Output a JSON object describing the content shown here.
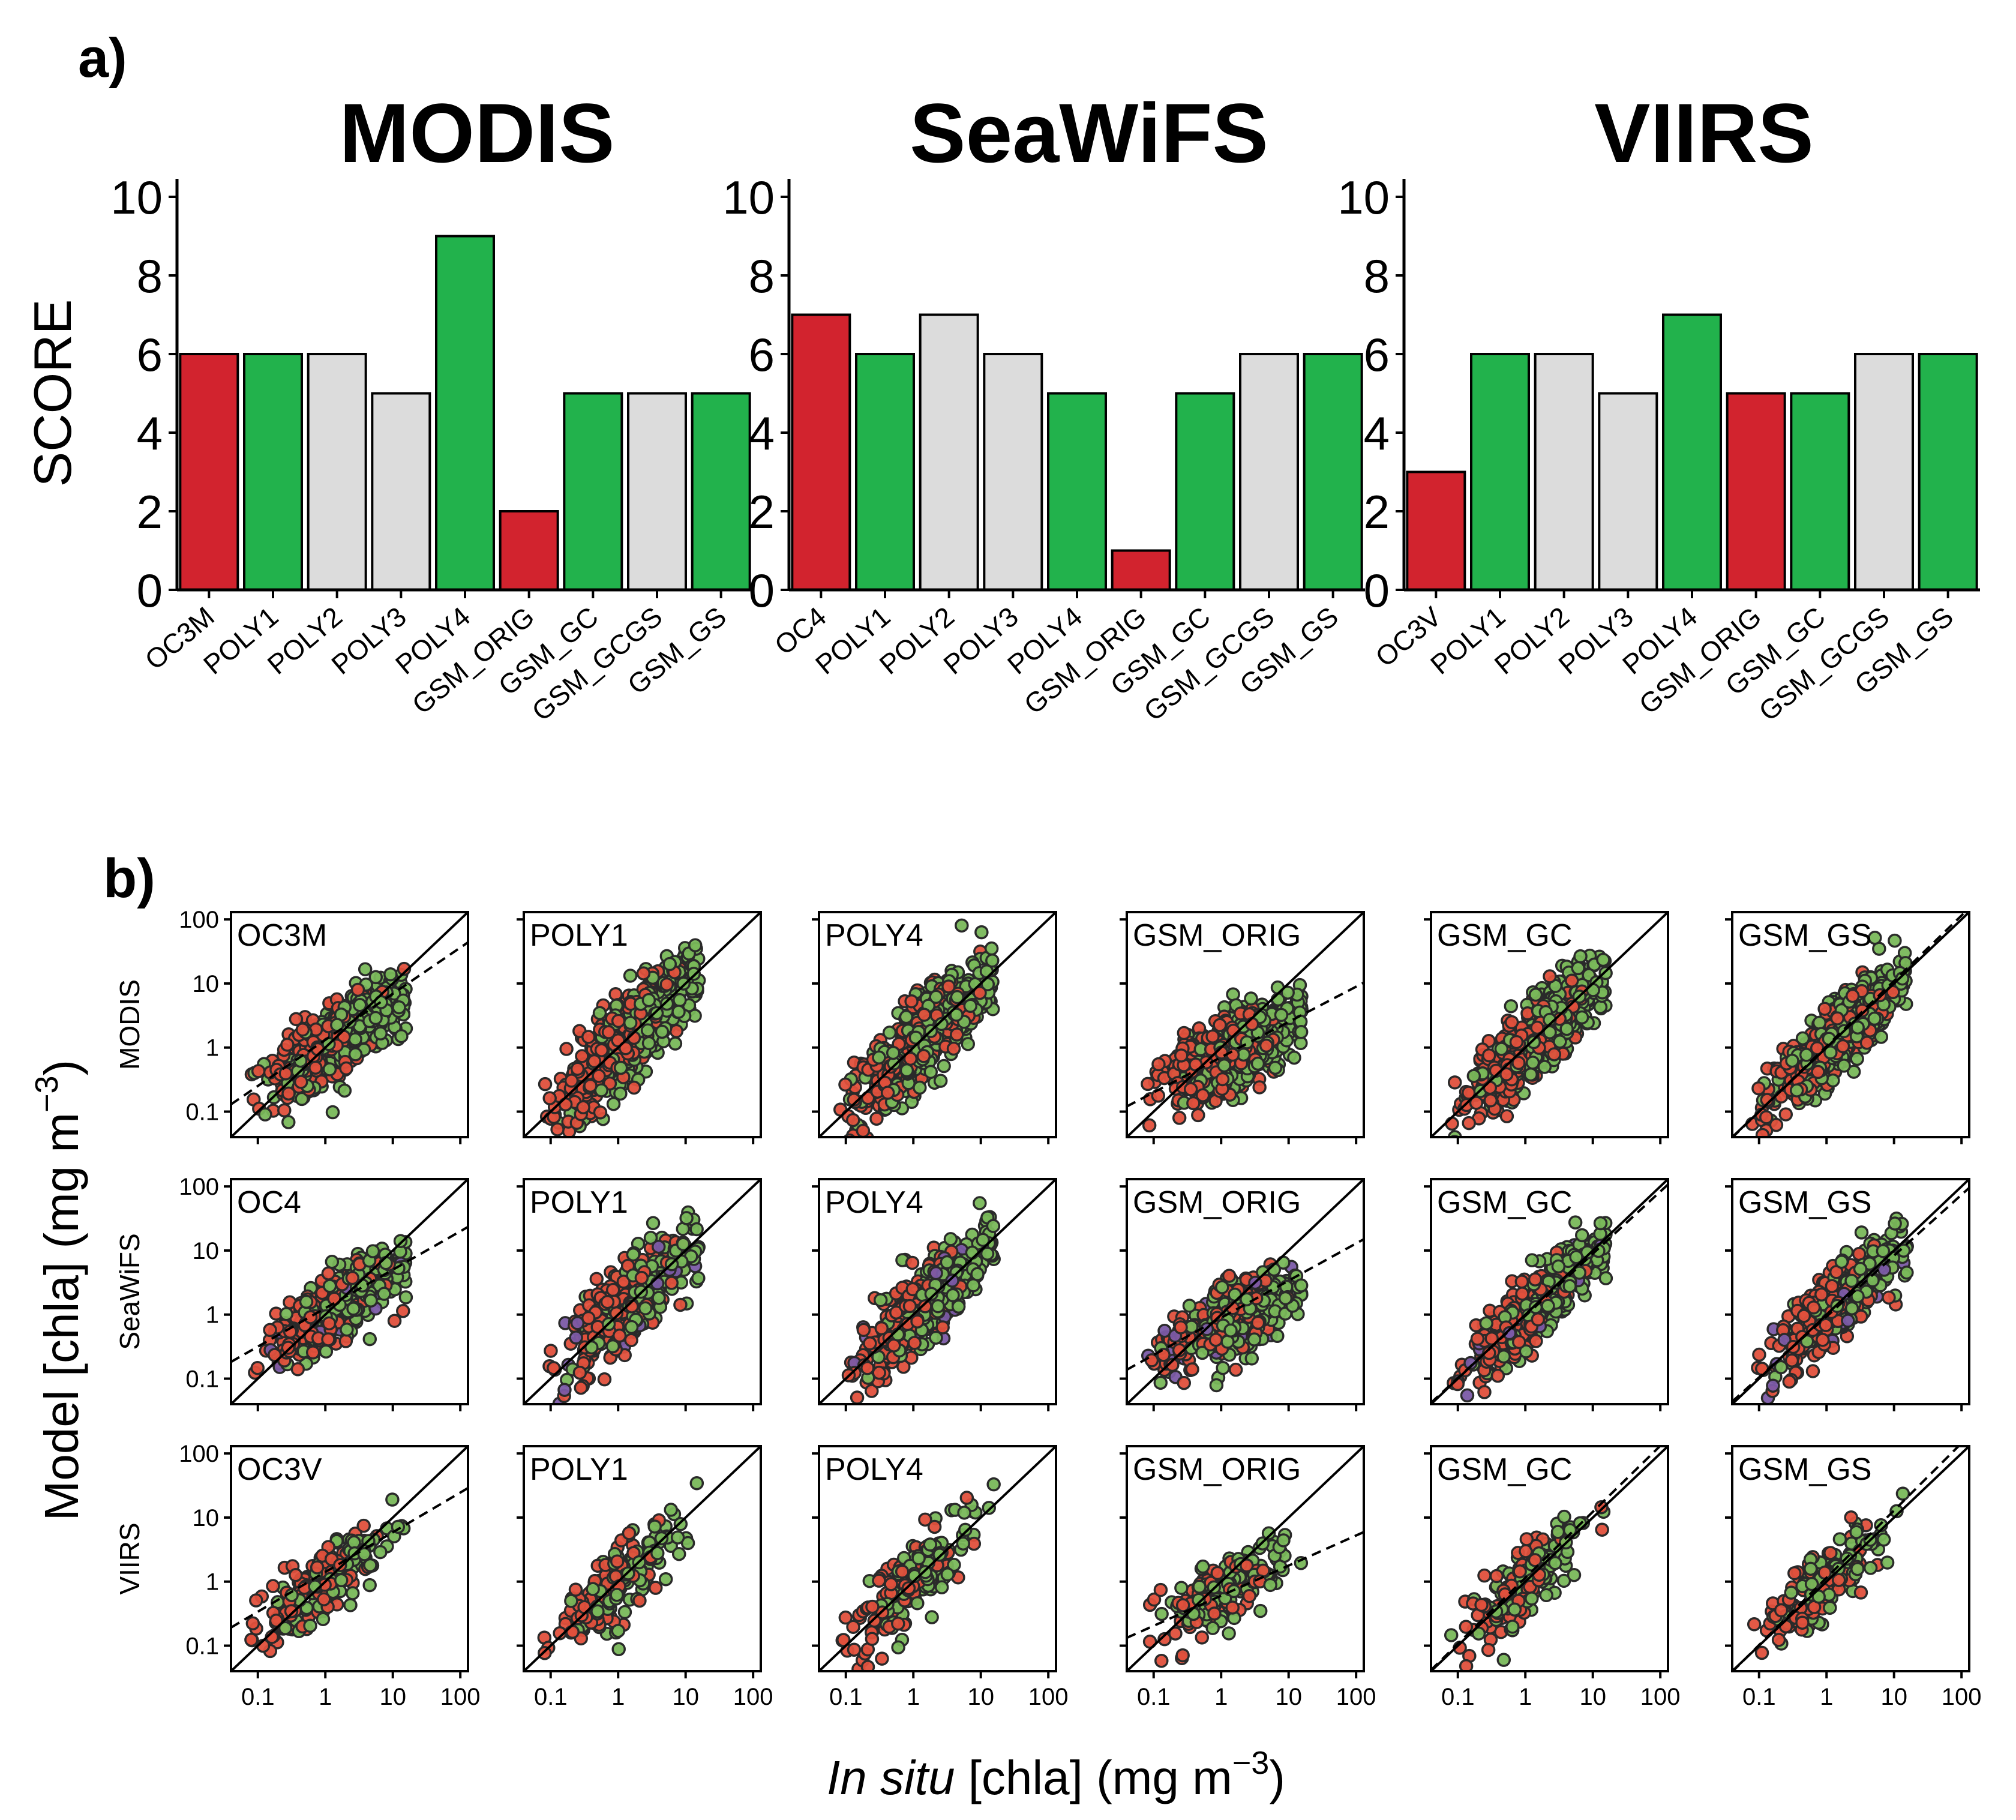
{
  "panel_labels": {
    "a": "a)",
    "b": "b)"
  },
  "chart_data": [
    {
      "type": "bar",
      "panel": "a",
      "title": "MODIS",
      "ylabel": "SCORE",
      "ylim": [
        0,
        10
      ],
      "yticks": [
        "0",
        "2",
        "4",
        "6",
        "8",
        "10"
      ],
      "categories": [
        "OC3M",
        "POLY1",
        "POLY2",
        "POLY3",
        "POLY4",
        "GSM_ORIG",
        "GSM_GC",
        "GSM_GCGS",
        "GSM_GS"
      ],
      "values": [
        6,
        6,
        6,
        5,
        9,
        2,
        5,
        5,
        5
      ],
      "bar_colors": [
        "#d2232e",
        "#22b24c",
        "#dcdcdc",
        "#dcdcdc",
        "#22b24c",
        "#d2232e",
        "#22b24c",
        "#dcdcdc",
        "#22b24c"
      ]
    },
    {
      "type": "bar",
      "panel": "a",
      "title": "SeaWiFS",
      "ylabel": "SCORE",
      "ylim": [
        0,
        10
      ],
      "yticks": [
        "0",
        "2",
        "4",
        "6",
        "8",
        "10"
      ],
      "categories": [
        "OC4",
        "POLY1",
        "POLY2",
        "POLY3",
        "POLY4",
        "GSM_ORIG",
        "GSM_GC",
        "GSM_GCGS",
        "GSM_GS"
      ],
      "values": [
        7,
        6,
        7,
        6,
        5,
        1,
        5,
        6,
        6
      ],
      "bar_colors": [
        "#d2232e",
        "#22b24c",
        "#dcdcdc",
        "#dcdcdc",
        "#22b24c",
        "#d2232e",
        "#22b24c",
        "#dcdcdc",
        "#22b24c"
      ]
    },
    {
      "type": "bar",
      "panel": "a",
      "title": "VIIRS",
      "ylabel": "SCORE",
      "ylim": [
        0,
        10
      ],
      "yticks": [
        "0",
        "2",
        "4",
        "6",
        "8",
        "10"
      ],
      "categories": [
        "OC3V",
        "POLY1",
        "POLY2",
        "POLY3",
        "POLY4",
        "GSM_ORIG",
        "GSM_GC",
        "GSM_GCGS",
        "GSM_GS"
      ],
      "values": [
        3,
        6,
        6,
        5,
        7,
        5,
        5,
        6,
        6
      ],
      "bar_colors": [
        "#d2232e",
        "#22b24c",
        "#dcdcdc",
        "#dcdcdc",
        "#22b24c",
        "#d2232e",
        "#22b24c",
        "#dcdcdc",
        "#22b24c"
      ]
    },
    {
      "type": "scatter",
      "panel": "b",
      "xscale": "log",
      "yscale": "log",
      "xlim": [
        0.04,
        130
      ],
      "ylim": [
        0.04,
        130
      ],
      "xticks": [
        "0.1",
        "1",
        "10",
        "100"
      ],
      "yticks": [
        "0.1",
        "1",
        "10",
        "100"
      ],
      "xlabel_italic": "In situ",
      "xlabel_bracket": "[chla]",
      "xlabel_units": "(mg m",
      "xlabel_exp": "−3",
      "xlabel_close": ")",
      "ylabel_prefix": "Model",
      "ylabel_bracket": "[chla]",
      "ylabel_units": "(mg m",
      "ylabel_exp": "−3",
      "ylabel_close": ")",
      "rows": [
        "MODIS",
        "SeaWiFS",
        "VIIRS"
      ],
      "point_colors": {
        "green": "#79b85a",
        "red": "#e0503c",
        "purple": "#7b5aa6"
      },
      "algorithms": [
        [
          "OC3M",
          "POLY1",
          "POLY4",
          "GSM_ORIG",
          "GSM_GC",
          "GSM_GS"
        ],
        [
          "OC4",
          "POLY1",
          "POLY4",
          "GSM_ORIG",
          "GSM_GC",
          "GSM_GS"
        ],
        [
          "OC3V",
          "POLY1",
          "POLY4",
          "GSM_ORIG",
          "GSM_GC",
          "GSM_GS"
        ]
      ],
      "fit_lines": [
        [
          {
            "slope": 0.72,
            "intercept": 0.12
          },
          {
            "slope": 1.0,
            "intercept": 0.0
          },
          {
            "slope": 1.0,
            "intercept": 0.0
          },
          {
            "slope": 0.55,
            "intercept": -0.15
          },
          {
            "slope": 1.0,
            "intercept": 0.0
          },
          {
            "slope": 1.02,
            "intercept": 0.02
          }
        ],
        [
          {
            "slope": 0.6,
            "intercept": 0.1
          },
          {
            "slope": 1.0,
            "intercept": 0.0
          },
          {
            "slope": 1.0,
            "intercept": 0.0
          },
          {
            "slope": 0.58,
            "intercept": -0.05
          },
          {
            "slope": 0.97,
            "intercept": -0.02
          },
          {
            "slope": 0.95,
            "intercept": -0.03
          }
        ],
        [
          {
            "slope": 0.62,
            "intercept": 0.15
          },
          {
            "slope": 1.0,
            "intercept": 0.0
          },
          {
            "slope": 1.0,
            "intercept": 0.0
          },
          {
            "slope": 0.47,
            "intercept": -0.22
          },
          {
            "slope": 1.03,
            "intercept": 0.06
          },
          {
            "slope": 1.05,
            "intercept": 0.06
          }
        ]
      ]
    }
  ]
}
